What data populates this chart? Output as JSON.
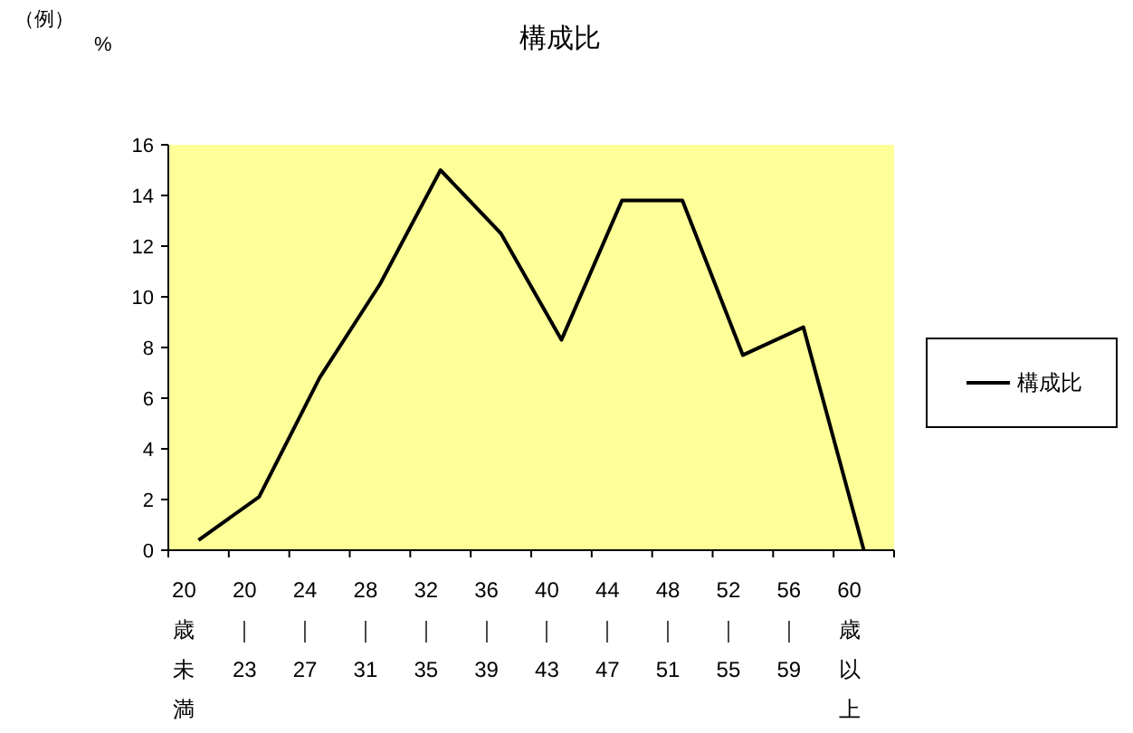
{
  "chart_data": {
    "type": "line",
    "title": "構成比",
    "ylabel": "%",
    "annotations": [
      "（例）"
    ],
    "categories": [
      "20歳未満",
      "20｜23",
      "24｜27",
      "28｜31",
      "32｜35",
      "36｜39",
      "40｜43",
      "44｜47",
      "48｜51",
      "52｜55",
      "56｜59",
      "60歳以上"
    ],
    "series": [
      {
        "name": "構成比",
        "color": "#000000",
        "values": [
          0.4,
          2.1,
          6.8,
          10.5,
          15.0,
          12.5,
          8.3,
          13.8,
          13.8,
          7.7,
          8.8,
          0
        ]
      }
    ],
    "ylim": [
      0,
      16
    ],
    "yticks": [
      0,
      2,
      4,
      6,
      8,
      10,
      12,
      14,
      16
    ],
    "grid": false,
    "legend": "right",
    "marker": "none",
    "line_style": "solid"
  }
}
